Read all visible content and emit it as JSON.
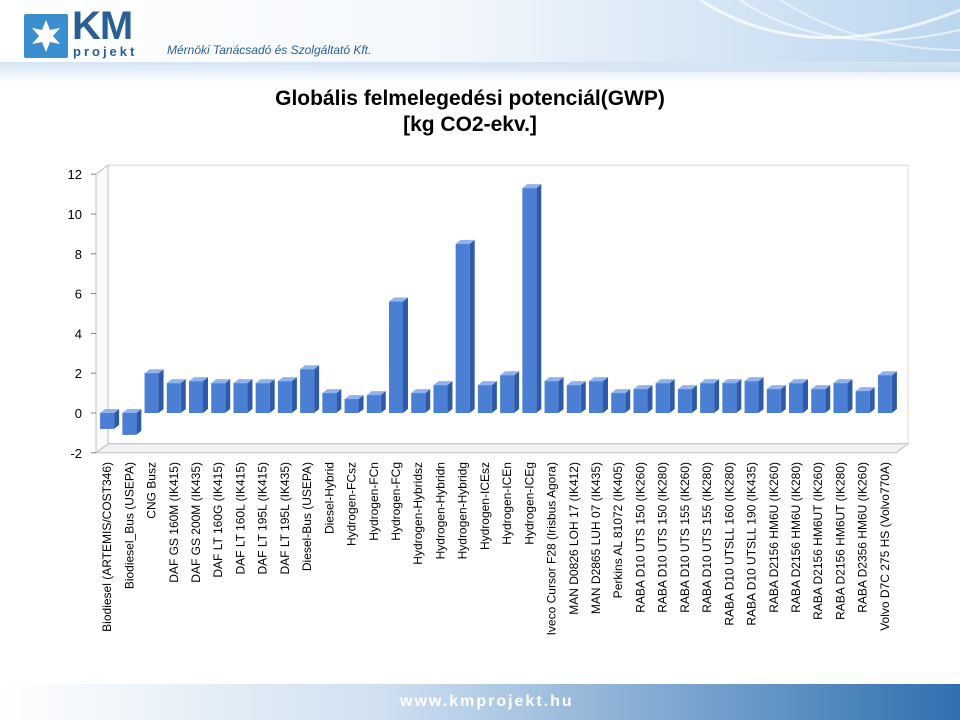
{
  "header": {
    "logo_text": "KM",
    "logo_sub": "projekt",
    "tagline": "Mérnöki Tanácsadó és Szolgáltató Kft."
  },
  "footer": {
    "url": "www.kmprojekt.hu"
  },
  "colors": {
    "bar": "#4a7fd4",
    "bar_dark": "#2f5aa8",
    "bar_light": "#8fb3ee",
    "brand": "#2a5f93"
  },
  "chart_data": {
    "type": "bar",
    "title_line1": "Globális felmelegedési potenciál(GWP)",
    "title_line2": "[kg CO2-ekv.]",
    "ylim": [
      -2,
      12
    ],
    "yticks": [
      "12",
      "10",
      "8",
      "6",
      "4",
      "2",
      "0",
      "-2"
    ],
    "grid": false,
    "categories": [
      "Biodiesel (ARTEMIS/COST346)",
      "Biodiesel_Bus (USEPA)",
      "CNG Busz",
      "DAF GS 160M (IK415)",
      "DAF GS 200M (IK435)",
      "DAF LT 160G (IK415)",
      "DAF LT 160L (IK415)",
      "DAF LT 195L (IK415)",
      "DAF LT 195L (IK435)",
      "Diesel-Bus (USEPA)",
      "Diesel-Hybrid",
      "Hydrogen-FCsz",
      "Hydrogen-FCn",
      "Hydrogen-FCg",
      "Hydrogen-Hybridsz",
      "Hydrogen-Hybridn",
      "Hydrogen-Hybridg",
      "Hydrogen-ICEsz",
      "Hydrogen-ICEn",
      "Hydrogen-ICEg",
      "Iveco Cursor F28 (Irisbus Agora)",
      "MAN D0826 LOH 17 (IK412)",
      "MAN D2865 LUH 07 (IK435)",
      "Perkins AL 81072 (IK405)",
      "RABA D10 UTS 150 (IK260)",
      "RABA D10 UTS 150 (IK280)",
      "RABA D10 UTS 155 (IK260)",
      "RABA D10 UTS 155 (IK280)",
      "RABA D10 UTSLL 160 (IK280)",
      "RABA D10 UTSLL 190 (IK435)",
      "RABA D2156 HM6U (IK260)",
      "RABA D2156 HM6U (IK280)",
      "RABA D2156 HM6UT (IK260)",
      "RABA D2156 HM6UT (IK280)",
      "RABA D2356 HM6U (IK260)",
      "Volvo D7C 275 HS (Volvo770A)"
    ],
    "values": [
      -0.8,
      -1.1,
      2.0,
      1.5,
      1.6,
      1.5,
      1.5,
      1.5,
      1.6,
      2.2,
      1.0,
      0.7,
      0.9,
      5.6,
      1.0,
      1.4,
      8.5,
      1.4,
      1.9,
      11.3,
      1.6,
      1.4,
      1.6,
      1.0,
      1.2,
      1.5,
      1.2,
      1.5,
      1.5,
      1.6,
      1.2,
      1.5,
      1.2,
      1.5,
      1.1,
      1.9
    ]
  }
}
